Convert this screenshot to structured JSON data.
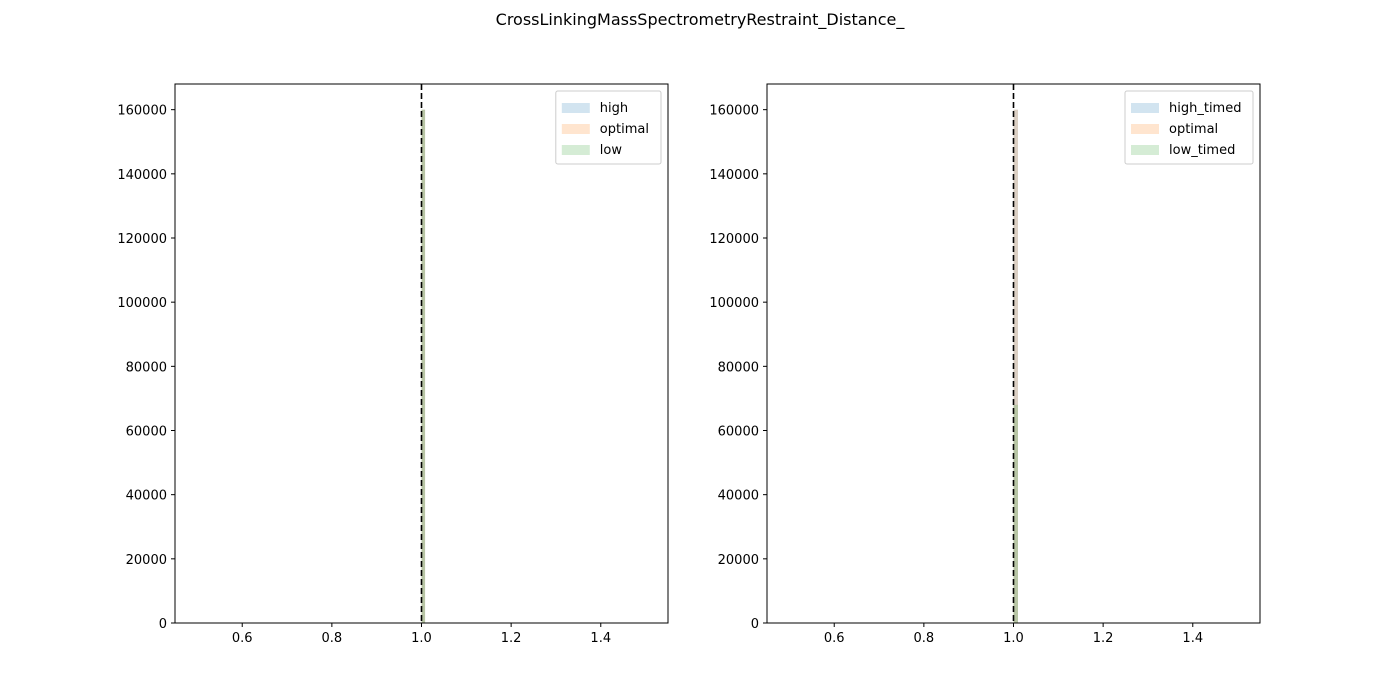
{
  "figure": {
    "title": "CrossLinkingMassSpectrometryRestraint_Distance_"
  },
  "colors": {
    "high": "#1f77b4",
    "optimal": "#ff7f0e",
    "low": "#2ca02c",
    "reference_line": "#000000",
    "fill_alpha": 0.2
  },
  "chart_data": [
    {
      "type": "bar",
      "title": "",
      "xlabel": "",
      "ylabel": "",
      "xlim": [
        0.45,
        1.55
      ],
      "ylim": [
        0,
        168000
      ],
      "xticks": [
        0.6,
        0.8,
        1.0,
        1.2,
        1.4
      ],
      "xtick_labels": [
        "0.6",
        "0.8",
        "1.0",
        "1.2",
        "1.4"
      ],
      "yticks": [
        0,
        20000,
        40000,
        60000,
        80000,
        100000,
        120000,
        140000,
        160000
      ],
      "ytick_labels": [
        "0",
        "20000",
        "40000",
        "60000",
        "80000",
        "100000",
        "120000",
        "140000",
        "160000"
      ],
      "grid": false,
      "legend_position": "top-right",
      "reference_line": {
        "x": 1.0,
        "style": "dashed"
      },
      "series": [
        {
          "name": "high",
          "color": "#1f77b4",
          "bins": [
            {
              "x0": 1.0,
              "x1": 1.008,
              "value": 160000
            }
          ]
        },
        {
          "name": "optimal",
          "color": "#ff7f0e",
          "bins": [
            {
              "x0": 1.0,
              "x1": 1.008,
              "value": 160000
            }
          ]
        },
        {
          "name": "low",
          "color": "#2ca02c",
          "bins": [
            {
              "x0": 1.0,
              "x1": 1.008,
              "value": 160000
            }
          ]
        }
      ]
    },
    {
      "type": "bar",
      "title": "",
      "xlabel": "",
      "ylabel": "",
      "xlim": [
        0.45,
        1.55
      ],
      "ylim": [
        0,
        168000
      ],
      "xticks": [
        0.6,
        0.8,
        1.0,
        1.2,
        1.4
      ],
      "xtick_labels": [
        "0.6",
        "0.8",
        "1.0",
        "1.2",
        "1.4"
      ],
      "yticks": [
        0,
        20000,
        40000,
        60000,
        80000,
        100000,
        120000,
        140000,
        160000
      ],
      "ytick_labels": [
        "0",
        "20000",
        "40000",
        "60000",
        "80000",
        "100000",
        "120000",
        "140000",
        "160000"
      ],
      "grid": false,
      "legend_position": "top-right",
      "reference_line": {
        "x": 1.0,
        "style": "dashed"
      },
      "series": [
        {
          "name": "high_timed",
          "color": "#1f77b4",
          "bins": [
            {
              "x0": 1.0,
              "x1": 1.01,
              "value": 160000
            }
          ]
        },
        {
          "name": "optimal",
          "color": "#ff7f0e",
          "bins": [
            {
              "x0": 1.0,
              "x1": 1.01,
              "value": 160000
            }
          ]
        },
        {
          "name": "low_timed",
          "color": "#2ca02c",
          "bins": [
            {
              "x0": 1.0,
              "x1": 1.01,
              "value": 68000
            }
          ]
        }
      ]
    }
  ]
}
